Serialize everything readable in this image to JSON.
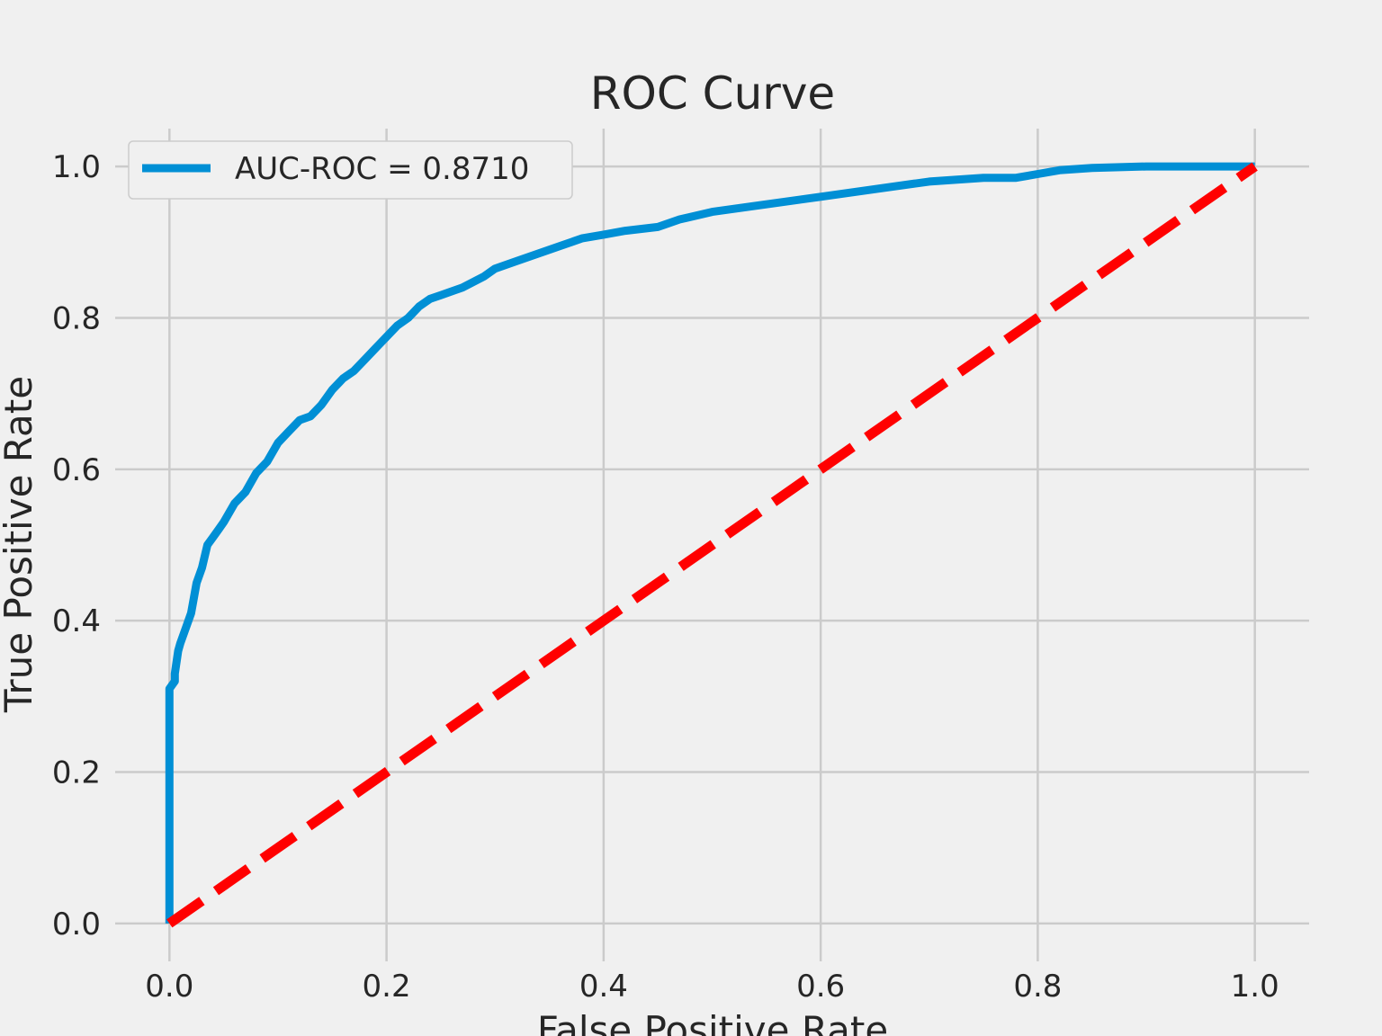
{
  "chart_data": {
    "type": "line",
    "title": "ROC Curve",
    "xlabel": "False Positive Rate",
    "ylabel": "True Positive Rate",
    "xlim": [
      -0.05,
      1.05
    ],
    "ylim": [
      -0.05,
      1.05
    ],
    "xticks": [
      "0.0",
      "0.2",
      "0.4",
      "0.6",
      "0.8",
      "1.0"
    ],
    "yticks": [
      "0.0",
      "0.2",
      "0.4",
      "0.6",
      "0.8",
      "1.0"
    ],
    "grid": true,
    "legend_position": "top-left",
    "series": [
      {
        "name": "AUC-ROC = 0.8710",
        "color": "#008fd5",
        "style": "solid",
        "x": [
          0.0,
          0.0,
          0.0,
          0.0,
          0.005,
          0.005,
          0.008,
          0.01,
          0.015,
          0.02,
          0.025,
          0.03,
          0.035,
          0.04,
          0.045,
          0.05,
          0.06,
          0.07,
          0.08,
          0.09,
          0.1,
          0.11,
          0.12,
          0.13,
          0.14,
          0.15,
          0.16,
          0.17,
          0.18,
          0.19,
          0.2,
          0.21,
          0.22,
          0.23,
          0.24,
          0.25,
          0.27,
          0.29,
          0.3,
          0.32,
          0.34,
          0.36,
          0.38,
          0.4,
          0.42,
          0.45,
          0.47,
          0.5,
          0.55,
          0.6,
          0.65,
          0.7,
          0.75,
          0.78,
          0.8,
          0.82,
          0.85,
          0.9,
          0.95,
          1.0
        ],
        "y": [
          0.0,
          0.2,
          0.25,
          0.31,
          0.32,
          0.33,
          0.36,
          0.37,
          0.39,
          0.41,
          0.45,
          0.47,
          0.5,
          0.51,
          0.52,
          0.53,
          0.555,
          0.57,
          0.595,
          0.61,
          0.635,
          0.65,
          0.665,
          0.67,
          0.685,
          0.705,
          0.72,
          0.73,
          0.745,
          0.76,
          0.775,
          0.79,
          0.8,
          0.815,
          0.825,
          0.83,
          0.84,
          0.855,
          0.865,
          0.875,
          0.885,
          0.895,
          0.905,
          0.91,
          0.915,
          0.92,
          0.93,
          0.94,
          0.95,
          0.96,
          0.97,
          0.98,
          0.985,
          0.985,
          0.99,
          0.995,
          0.998,
          1.0,
          1.0,
          1.0
        ]
      },
      {
        "color": "#ff0000",
        "style": "dashed",
        "x": [
          0.0,
          1.0
        ],
        "y": [
          0.0,
          1.0
        ]
      }
    ]
  }
}
